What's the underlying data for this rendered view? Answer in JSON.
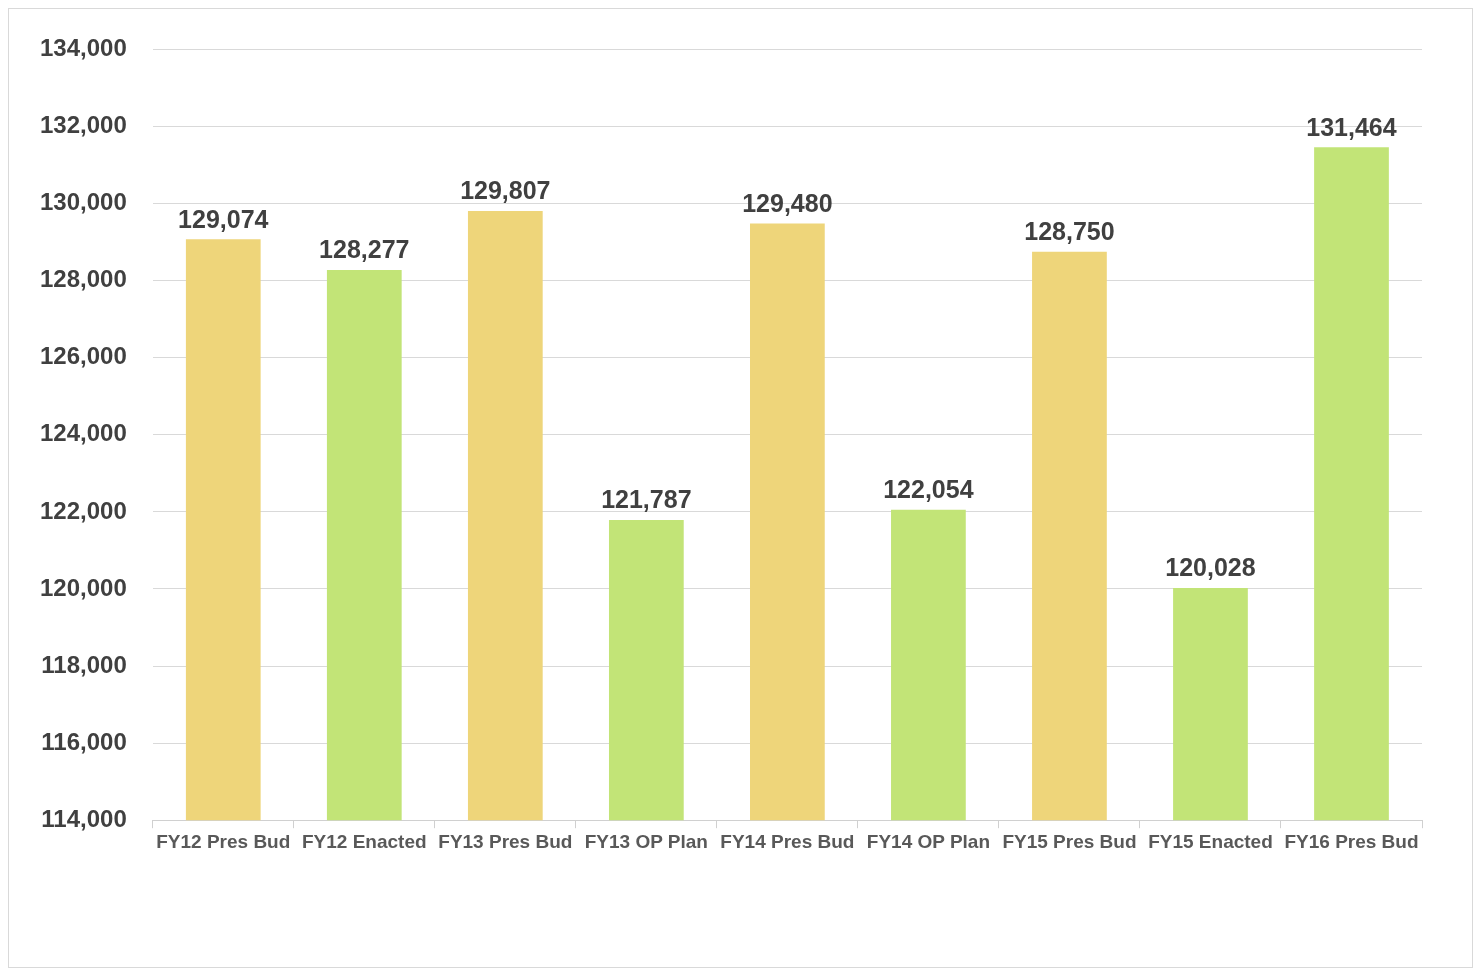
{
  "chart_data": {
    "type": "bar",
    "categories": [
      "FY12 Pres Bud",
      "FY12 Enacted",
      "FY13 Pres Bud",
      "FY13 OP Plan",
      "FY14 Pres Bud",
      "FY14 OP Plan",
      "FY15 Pres Bud",
      "FY15 Enacted",
      "FY16 Pres Bud"
    ],
    "values": [
      129074,
      128277,
      129807,
      121787,
      129480,
      122054,
      128750,
      120028,
      131464
    ],
    "value_labels": [
      "129,074",
      "128,277",
      "129,807",
      "121,787",
      "129,480",
      "122,054",
      "128,750",
      "120,028",
      "131,464"
    ],
    "colors": [
      "#eed57a",
      "#c2e477",
      "#eed57a",
      "#c2e477",
      "#eed57a",
      "#c2e477",
      "#eed57a",
      "#c2e477",
      "#c2e477"
    ],
    "ylim": [
      114000,
      134000
    ],
    "yticks": [
      {
        "value": 114000,
        "label": "114,000"
      },
      {
        "value": 116000,
        "label": "116,000"
      },
      {
        "value": 118000,
        "label": "118,000"
      },
      {
        "value": 120000,
        "label": "120,000"
      },
      {
        "value": 122000,
        "label": "122,000"
      },
      {
        "value": 124000,
        "label": "124,000"
      },
      {
        "value": 126000,
        "label": "126,000"
      },
      {
        "value": 128000,
        "label": "128,000"
      },
      {
        "value": 130000,
        "label": "130,000"
      },
      {
        "value": 132000,
        "label": "132,000"
      },
      {
        "value": 134000,
        "label": "134,000"
      }
    ],
    "grid": "y",
    "legend": false
  }
}
